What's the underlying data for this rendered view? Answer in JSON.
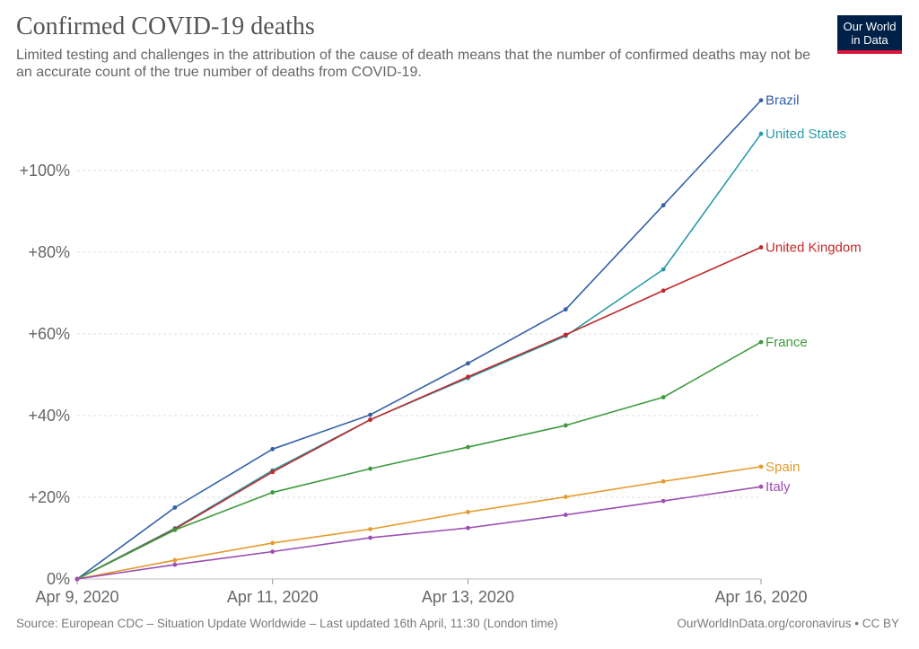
{
  "header": {
    "title": "Confirmed COVID-19 deaths",
    "subtitle": "Limited testing and challenges in the attribution of the cause of death means that the number of confirmed deaths may not be an accurate count of the true number of deaths from COVID-19."
  },
  "logo": {
    "line1": "Our World",
    "line2": "in Data",
    "bg_color": "#002147",
    "accent_color": "#dc143c"
  },
  "footer": {
    "source": "Source: European CDC – Situation Update Worldwide – Last updated 16th April, 11:30 (London time)",
    "link": "OurWorldInData.org/coronavirus • CC BY"
  },
  "chart_data": {
    "type": "line",
    "title": "Confirmed COVID-19 deaths",
    "xlabel": "",
    "ylabel": "",
    "ylim": [
      0,
      110
    ],
    "yticks": [
      0,
      20,
      40,
      60,
      80,
      100
    ],
    "ytick_labels": [
      "0%",
      "+20%",
      "+40%",
      "+60%",
      "+80%",
      "+100%"
    ],
    "xlim": [
      0,
      7
    ],
    "xticks": [
      0,
      2,
      4,
      7
    ],
    "xtick_labels": [
      "Apr 9, 2020",
      "Apr 11, 2020",
      "Apr 13, 2020",
      "Apr 16, 2020"
    ],
    "x": [
      0,
      1,
      2,
      3,
      4,
      5,
      6,
      7
    ],
    "grid": true,
    "legend": "inline-right",
    "series": [
      {
        "name": "Brazil",
        "color": "#3360a9",
        "values": [
          0,
          17.5,
          31.8,
          40.2,
          52.8,
          66.0,
          91.5,
          117.2
        ]
      },
      {
        "name": "United States",
        "color": "#2a9aa8",
        "values": [
          0,
          12.4,
          26.6,
          39.0,
          49.2,
          59.5,
          75.8,
          109.0
        ]
      },
      {
        "name": "United Kingdom",
        "color": "#c0292a",
        "values": [
          0,
          12.2,
          26.2,
          39.0,
          49.5,
          59.8,
          70.6,
          81.2
        ]
      },
      {
        "name": "France",
        "color": "#3d9a3d",
        "values": [
          0,
          12.0,
          21.2,
          27.0,
          32.3,
          37.6,
          44.5,
          58.0
        ]
      },
      {
        "name": "Spain",
        "color": "#e59a2c",
        "values": [
          0,
          4.6,
          8.8,
          12.2,
          16.4,
          20.1,
          23.9,
          27.5
        ]
      },
      {
        "name": "Italy",
        "color": "#9c4db2",
        "values": [
          0,
          3.5,
          6.7,
          10.1,
          12.5,
          15.7,
          19.1,
          22.6
        ]
      }
    ]
  }
}
